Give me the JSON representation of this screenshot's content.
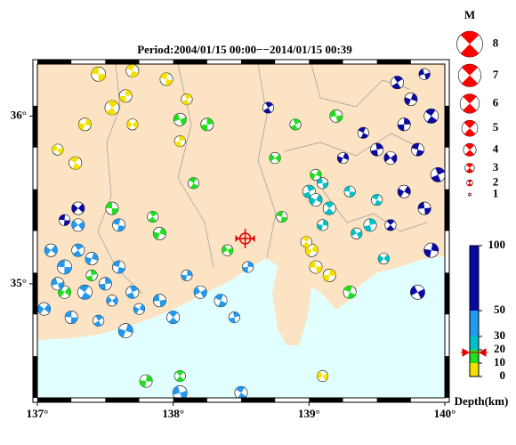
{
  "title": "Period:2004/01/15 00:00−−2014/01/15 00:39",
  "map": {
    "xlim": [
      137,
      140
    ],
    "ylim": [
      34.32,
      36.31
    ],
    "xticks": [
      {
        "value": 137,
        "label": "137°"
      },
      {
        "value": 138,
        "label": "138°"
      },
      {
        "value": 139,
        "label": "139°"
      },
      {
        "value": 140,
        "label": "140°"
      }
    ],
    "yticks": [
      {
        "value": 35,
        "label": "35°"
      },
      {
        "value": 36,
        "label": "36°"
      }
    ],
    "land_color": "#fbe3c4",
    "sea_color": "#e2ffff",
    "selected": {
      "lon": 138.53,
      "lat": 35.27,
      "depth": 18,
      "color": "#e00000"
    },
    "events": [
      [
        137.45,
        36.25,
        5,
        4.5
      ],
      [
        137.55,
        36.05,
        5,
        4.5
      ],
      [
        137.35,
        35.95,
        5,
        4
      ],
      [
        137.15,
        35.8,
        5,
        3.5
      ],
      [
        137.28,
        35.72,
        5,
        4
      ],
      [
        137.65,
        36.12,
        5,
        4
      ],
      [
        137.7,
        35.95,
        5,
        3.5
      ],
      [
        137.95,
        36.22,
        5,
        4
      ],
      [
        138.1,
        36.1,
        5,
        3.5
      ],
      [
        139.02,
        35.2,
        5,
        4
      ],
      [
        139.05,
        35.1,
        5,
        4
      ],
      [
        138.98,
        35.25,
        5,
        3.5
      ],
      [
        139.15,
        35.05,
        5,
        4
      ],
      [
        139.1,
        34.45,
        5,
        3.5
      ],
      [
        137.7,
        36.27,
        5,
        4
      ],
      [
        138.05,
        35.85,
        5,
        3.5
      ],
      [
        137.2,
        34.95,
        15,
        4
      ],
      [
        137.55,
        35.45,
        15,
        4
      ],
      [
        137.85,
        35.4,
        15,
        3.5
      ],
      [
        137.9,
        35.3,
        15,
        4
      ],
      [
        138.05,
        35.98,
        15,
        4
      ],
      [
        138.15,
        35.6,
        15,
        3.5
      ],
      [
        138.25,
        35.95,
        15,
        4
      ],
      [
        138.75,
        35.75,
        15,
        3.5
      ],
      [
        138.8,
        35.4,
        15,
        3.5
      ],
      [
        138.9,
        35.95,
        15,
        3.5
      ],
      [
        139.05,
        35.65,
        15,
        3.5
      ],
      [
        139.2,
        36.0,
        15,
        4
      ],
      [
        138.05,
        34.45,
        15,
        3.5
      ],
      [
        137.8,
        34.42,
        15,
        4
      ],
      [
        138.4,
        35.2,
        15,
        3.5
      ],
      [
        139.3,
        34.95,
        15,
        4
      ],
      [
        137.4,
        35.05,
        15,
        3.5
      ],
      [
        137.1,
        35.2,
        35,
        4
      ],
      [
        137.2,
        35.1,
        35,
        4.5
      ],
      [
        137.3,
        35.2,
        35,
        4
      ],
      [
        137.4,
        35.15,
        35,
        4
      ],
      [
        137.15,
        35.0,
        35,
        4
      ],
      [
        137.35,
        34.95,
        35,
        4.5
      ],
      [
        137.5,
        35.0,
        35,
        4
      ],
      [
        137.55,
        34.9,
        35,
        3.5
      ],
      [
        137.6,
        35.1,
        35,
        4
      ],
      [
        137.7,
        34.95,
        35,
        4
      ],
      [
        137.75,
        34.85,
        35,
        3.5
      ],
      [
        137.9,
        34.9,
        35,
        4
      ],
      [
        138.0,
        34.8,
        35,
        4
      ],
      [
        138.1,
        35.05,
        35,
        3.5
      ],
      [
        138.2,
        34.95,
        35,
        4
      ],
      [
        138.35,
        34.9,
        35,
        4
      ],
      [
        138.45,
        34.8,
        35,
        3.5
      ],
      [
        137.05,
        34.85,
        35,
        4
      ],
      [
        137.25,
        34.8,
        35,
        4
      ],
      [
        137.45,
        34.78,
        35,
        3.5
      ],
      [
        137.65,
        34.72,
        35,
        4.5
      ],
      [
        138.05,
        34.35,
        35,
        4.5
      ],
      [
        138.5,
        34.35,
        35,
        4
      ],
      [
        138.55,
        35.1,
        35,
        3.5
      ],
      [
        137.3,
        35.35,
        35,
        4
      ],
      [
        137.6,
        35.35,
        35,
        4
      ],
      [
        139.0,
        35.55,
        25,
        4
      ],
      [
        139.05,
        35.5,
        25,
        4
      ],
      [
        139.1,
        35.6,
        25,
        3.5
      ],
      [
        139.15,
        35.45,
        25,
        4
      ],
      [
        139.1,
        35.35,
        25,
        3.5
      ],
      [
        139.35,
        35.3,
        25,
        3.5
      ],
      [
        139.5,
        35.5,
        25,
        3.5
      ],
      [
        139.45,
        35.35,
        25,
        4
      ],
      [
        139.55,
        35.15,
        25,
        3.5
      ],
      [
        139.3,
        35.55,
        25,
        3.5
      ],
      [
        139.65,
        36.2,
        70,
        4
      ],
      [
        139.75,
        36.1,
        70,
        4
      ],
      [
        139.85,
        36.25,
        70,
        3.5
      ],
      [
        139.9,
        36.0,
        70,
        4.5
      ],
      [
        139.7,
        35.95,
        70,
        4
      ],
      [
        139.6,
        35.75,
        70,
        4
      ],
      [
        139.8,
        35.8,
        70,
        4
      ],
      [
        139.95,
        35.65,
        70,
        4.5
      ],
      [
        139.7,
        35.55,
        70,
        4
      ],
      [
        139.85,
        35.45,
        70,
        4
      ],
      [
        139.6,
        35.35,
        70,
        3.5
      ],
      [
        139.9,
        35.2,
        70,
        4.5
      ],
      [
        139.8,
        34.95,
        70,
        4.5
      ],
      [
        139.4,
        35.9,
        70,
        3.5
      ],
      [
        139.5,
        35.8,
        70,
        4
      ],
      [
        137.3,
        35.45,
        70,
        4
      ],
      [
        137.2,
        35.38,
        70,
        3.5
      ],
      [
        138.7,
        36.05,
        70,
        3.5
      ],
      [
        139.25,
        35.75,
        70,
        3.5
      ]
    ]
  },
  "magnitude_legend": {
    "title": "M",
    "levels": [
      8,
      7,
      6,
      5,
      4,
      3,
      2,
      1
    ],
    "color": "#ff0000"
  },
  "depth_scale": {
    "label": "Depth(km)",
    "ticks": [
      100,
      50,
      30,
      20,
      10,
      0
    ],
    "bands": [
      {
        "from": 0,
        "to": 10,
        "color": "#f5e000"
      },
      {
        "from": 10,
        "to": 20,
        "color": "#1ee01e"
      },
      {
        "from": 20,
        "to": 30,
        "color": "#00c0c8"
      },
      {
        "from": 30,
        "to": 50,
        "color": "#2299ee"
      },
      {
        "from": 50,
        "to": 100,
        "color": "#0a0aa0"
      }
    ]
  }
}
